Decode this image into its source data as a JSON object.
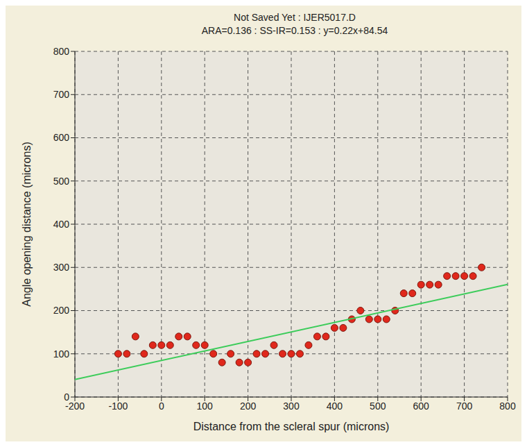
{
  "chart_data": {
    "type": "scatter",
    "title": "Not Saved Yet : IJER5017.D",
    "subtitle": "ARA=0.136 : SS-IR=0.153 : y=0.22x+84.54",
    "x_label": "Distance from the scleral spur (microns)",
    "y_label": "Angle opening distance (microns)",
    "xlim": [
      -200,
      800
    ],
    "xticks": [
      -200,
      -100,
      0,
      100,
      200,
      300,
      400,
      500,
      600,
      700,
      800
    ],
    "ylim": [
      0,
      800
    ],
    "yticks": [
      0,
      100,
      200,
      300,
      400,
      500,
      600,
      700,
      800
    ],
    "grid": true,
    "series": [
      {
        "type": "scatter",
        "color": "#e0281c",
        "marker": "circle",
        "x": [
          -100,
          -80,
          -60,
          -40,
          -20,
          0,
          20,
          40,
          60,
          80,
          100,
          120,
          140,
          160,
          180,
          200,
          220,
          240,
          260,
          280,
          300,
          320,
          340,
          360,
          380,
          400,
          420,
          440,
          460,
          480,
          500,
          520,
          540,
          560,
          580,
          600,
          620,
          640,
          660,
          680,
          700,
          720,
          740
        ],
        "values": [
          100,
          100,
          140,
          100,
          120,
          120,
          120,
          140,
          140,
          120,
          120,
          100,
          80,
          100,
          80,
          80,
          100,
          100,
          120,
          100,
          100,
          100,
          120,
          140,
          140,
          160,
          160,
          180,
          200,
          180,
          180,
          180,
          200,
          240,
          240,
          260,
          260,
          260,
          280,
          280,
          280,
          280,
          300
        ]
      },
      {
        "type": "line",
        "color": "#3ccc5a",
        "marker": "none",
        "line_style": "solid",
        "x": [
          -200,
          800
        ],
        "values": [
          40.54,
          260.54
        ]
      }
    ]
  }
}
